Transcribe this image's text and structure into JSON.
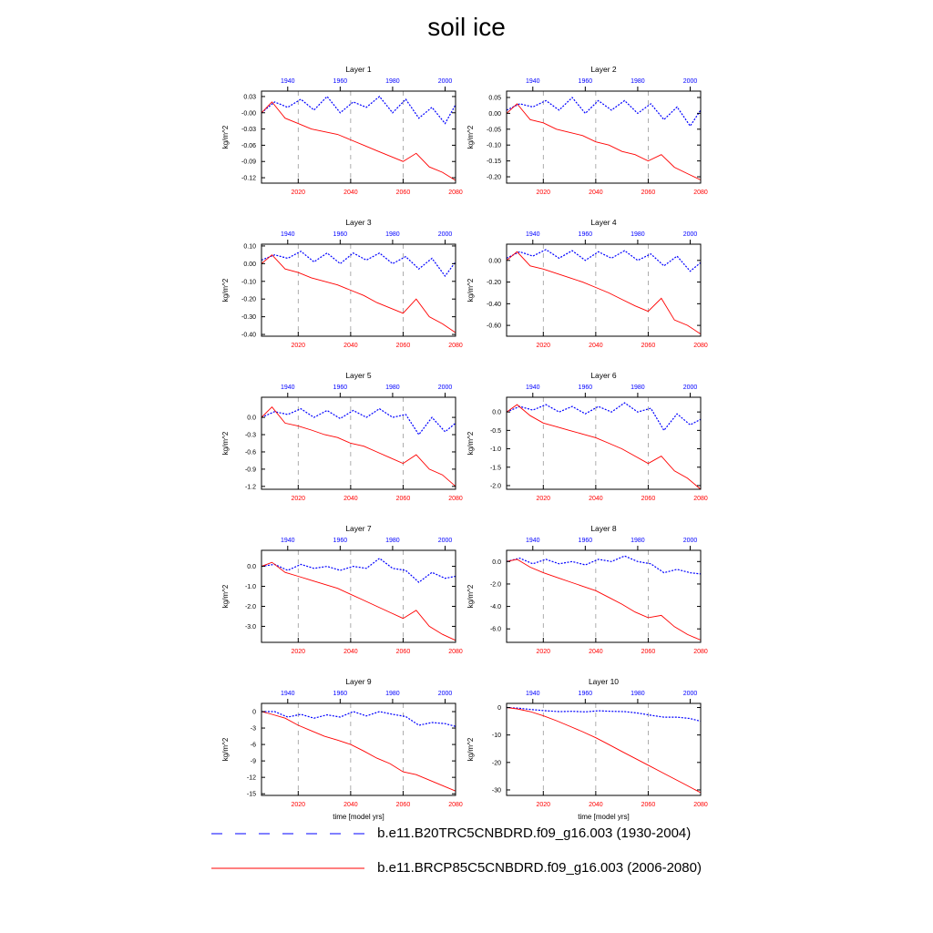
{
  "title": "soil ice",
  "shared_axes": {
    "ylabel": "kg/m^2",
    "xlabel_bottom": "time [model yrs]",
    "bottom_ticks": [
      2020,
      2040,
      2060,
      2080
    ],
    "bottom_range": [
      2006,
      2080
    ],
    "top_ticks": [
      1940,
      1960,
      1980,
      2000
    ],
    "top_range": [
      1930,
      2004
    ],
    "bottom_tick_color": "#ff0000",
    "top_tick_color": "#0000ff",
    "grid": "dashed vertical at bottom ticks"
  },
  "legend": [
    {
      "name": "b.e11.B20TRC5CNBDRD.f09_g16.003 (1930-2004)",
      "color": "#0000ff",
      "style": "dashed"
    },
    {
      "name": "b.e11.BRCP85C5CNBDRD.f09_g16.003 (2006-2080)",
      "color": "#ff0000",
      "style": "solid"
    }
  ],
  "chart_data": [
    {
      "type": "line",
      "title": "Layer 1",
      "ylim": [
        -0.13,
        0.04
      ],
      "yticks": [
        0.03,
        -0.0,
        -0.03,
        -0.06,
        -0.09,
        -0.12
      ],
      "ytick_labels": [
        "0.03",
        "-0.00",
        "-0.03",
        "-0.06",
        "-0.09",
        "-0.12"
      ],
      "series": [
        {
          "name": "b.e11.B20TRC5CNBDRD.f09_g16.003 (1930-2004)",
          "axis": "top",
          "x": [
            1930,
            1935,
            1940,
            1945,
            1950,
            1955,
            1960,
            1965,
            1970,
            1975,
            1980,
            1985,
            1990,
            1995,
            2000,
            2004
          ],
          "values": [
            0.0,
            0.02,
            0.01,
            0.025,
            0.005,
            0.03,
            0.0,
            0.02,
            0.01,
            0.03,
            0.0,
            0.025,
            -0.01,
            0.01,
            -0.02,
            0.015
          ]
        },
        {
          "name": "b.e11.BRCP85C5CNBDRD.f09_g16.003 (2006-2080)",
          "axis": "bottom",
          "x": [
            2006,
            2010,
            2015,
            2020,
            2025,
            2030,
            2035,
            2040,
            2045,
            2050,
            2055,
            2060,
            2065,
            2070,
            2075,
            2080
          ],
          "values": [
            0.0,
            0.02,
            -0.01,
            -0.02,
            -0.03,
            -0.035,
            -0.04,
            -0.05,
            -0.06,
            -0.07,
            -0.08,
            -0.09,
            -0.075,
            -0.1,
            -0.11,
            -0.125
          ]
        }
      ]
    },
    {
      "type": "line",
      "title": "Layer 2",
      "ylim": [
        -0.22,
        0.07
      ],
      "yticks": [
        0.05,
        0.0,
        -0.05,
        -0.1,
        -0.15,
        -0.2
      ],
      "ytick_labels": [
        "0.05",
        "0.00",
        "-0.05",
        "-0.10",
        "-0.15",
        "-0.20"
      ],
      "series": [
        {
          "name": "b.e11.B20TRC5CNBDRD.f09_g16.003 (1930-2004)",
          "axis": "top",
          "x": [
            1930,
            1935,
            1940,
            1945,
            1950,
            1955,
            1960,
            1965,
            1970,
            1975,
            1980,
            1985,
            1990,
            1995,
            2000,
            2004
          ],
          "values": [
            0.01,
            0.03,
            0.02,
            0.04,
            0.01,
            0.05,
            0.0,
            0.04,
            0.01,
            0.04,
            0.0,
            0.03,
            -0.02,
            0.02,
            -0.04,
            0.01
          ]
        },
        {
          "name": "b.e11.BRCP85C5CNBDRD.f09_g16.003 (2006-2080)",
          "axis": "bottom",
          "x": [
            2006,
            2010,
            2015,
            2020,
            2025,
            2030,
            2035,
            2040,
            2045,
            2050,
            2055,
            2060,
            2065,
            2070,
            2075,
            2080
          ],
          "values": [
            0.0,
            0.03,
            -0.02,
            -0.03,
            -0.05,
            -0.06,
            -0.07,
            -0.09,
            -0.1,
            -0.12,
            -0.13,
            -0.15,
            -0.13,
            -0.17,
            -0.19,
            -0.21
          ]
        }
      ]
    },
    {
      "type": "line",
      "title": "Layer 3",
      "ylim": [
        -0.41,
        0.11
      ],
      "yticks": [
        0.1,
        0.0,
        -0.1,
        -0.2,
        -0.3,
        -0.4
      ],
      "ytick_labels": [
        "0.10",
        "0.00",
        "-0.10",
        "-0.20",
        "-0.30",
        "-0.40"
      ],
      "series": [
        {
          "name": "b.e11.B20TRC5CNBDRD.f09_g16.003 (1930-2004)",
          "axis": "top",
          "x": [
            1930,
            1935,
            1940,
            1945,
            1950,
            1955,
            1960,
            1965,
            1970,
            1975,
            1980,
            1985,
            1990,
            1995,
            2000,
            2004
          ],
          "values": [
            0.02,
            0.05,
            0.03,
            0.07,
            0.01,
            0.06,
            0.0,
            0.06,
            0.02,
            0.06,
            0.0,
            0.04,
            -0.03,
            0.03,
            -0.07,
            0.01
          ]
        },
        {
          "name": "b.e11.BRCP85C5CNBDRD.f09_g16.003 (2006-2080)",
          "axis": "bottom",
          "x": [
            2006,
            2010,
            2015,
            2020,
            2025,
            2030,
            2035,
            2040,
            2045,
            2050,
            2055,
            2060,
            2065,
            2070,
            2075,
            2080
          ],
          "values": [
            0.0,
            0.05,
            -0.03,
            -0.05,
            -0.08,
            -0.1,
            -0.12,
            -0.15,
            -0.18,
            -0.22,
            -0.25,
            -0.28,
            -0.2,
            -0.3,
            -0.34,
            -0.39
          ]
        }
      ]
    },
    {
      "type": "line",
      "title": "Layer 4",
      "ylim": [
        -0.7,
        0.15
      ],
      "yticks": [
        0.0,
        -0.2,
        -0.4,
        -0.6
      ],
      "ytick_labels": [
        "0.00",
        "-0.20",
        "-0.40",
        "-0.60"
      ],
      "series": [
        {
          "name": "b.e11.B20TRC5CNBDRD.f09_g16.003 (1930-2004)",
          "axis": "top",
          "x": [
            1930,
            1935,
            1940,
            1945,
            1950,
            1955,
            1960,
            1965,
            1970,
            1975,
            1980,
            1985,
            1990,
            1995,
            2000,
            2004
          ],
          "values": [
            0.02,
            0.08,
            0.04,
            0.1,
            0.02,
            0.09,
            0.0,
            0.08,
            0.02,
            0.09,
            0.0,
            0.06,
            -0.05,
            0.04,
            -0.1,
            -0.02
          ]
        },
        {
          "name": "b.e11.BRCP85C5CNBDRD.f09_g16.003 (2006-2080)",
          "axis": "bottom",
          "x": [
            2006,
            2010,
            2015,
            2020,
            2025,
            2030,
            2035,
            2040,
            2045,
            2050,
            2055,
            2060,
            2065,
            2070,
            2075,
            2080
          ],
          "values": [
            0.0,
            0.08,
            -0.05,
            -0.08,
            -0.12,
            -0.16,
            -0.2,
            -0.25,
            -0.3,
            -0.36,
            -0.42,
            -0.47,
            -0.35,
            -0.55,
            -0.6,
            -0.68
          ]
        }
      ]
    },
    {
      "type": "line",
      "title": "Layer 5",
      "ylim": [
        -1.25,
        0.35
      ],
      "yticks": [
        0.0,
        -0.3,
        -0.6,
        -0.9,
        -1.2
      ],
      "ytick_labels": [
        "0.0",
        "-0.3",
        "-0.6",
        "-0.9",
        "-1.2"
      ],
      "series": [
        {
          "name": "b.e11.B20TRC5CNBDRD.f09_g16.003 (1930-2004)",
          "axis": "top",
          "x": [
            1930,
            1935,
            1940,
            1945,
            1950,
            1955,
            1960,
            1965,
            1970,
            1975,
            1980,
            1985,
            1990,
            1995,
            2000,
            2004
          ],
          "values": [
            0.0,
            0.1,
            0.05,
            0.15,
            0.0,
            0.12,
            -0.02,
            0.12,
            0.0,
            0.15,
            0.0,
            0.05,
            -0.3,
            0.0,
            -0.25,
            -0.1
          ]
        },
        {
          "name": "b.e11.BRCP85C5CNBDRD.f09_g16.003 (2006-2080)",
          "axis": "bottom",
          "x": [
            2006,
            2010,
            2015,
            2020,
            2025,
            2030,
            2035,
            2040,
            2045,
            2050,
            2055,
            2060,
            2065,
            2070,
            2075,
            2080
          ],
          "values": [
            0.0,
            0.18,
            -0.1,
            -0.15,
            -0.22,
            -0.3,
            -0.35,
            -0.45,
            -0.5,
            -0.6,
            -0.7,
            -0.8,
            -0.65,
            -0.9,
            -1.0,
            -1.2
          ]
        }
      ]
    },
    {
      "type": "line",
      "title": "Layer 6",
      "ylim": [
        -2.1,
        0.4
      ],
      "yticks": [
        0.0,
        -0.5,
        -1.0,
        -1.5,
        -2.0
      ],
      "ytick_labels": [
        "0.0",
        "-0.5",
        "-1.0",
        "-1.5",
        "-2.0"
      ],
      "series": [
        {
          "name": "b.e11.B20TRC5CNBDRD.f09_g16.003 (1930-2004)",
          "axis": "top",
          "x": [
            1930,
            1935,
            1940,
            1945,
            1950,
            1955,
            1960,
            1965,
            1970,
            1975,
            1980,
            1985,
            1990,
            1995,
            2000,
            2004
          ],
          "values": [
            0.0,
            0.15,
            0.05,
            0.2,
            0.0,
            0.15,
            -0.05,
            0.15,
            0.0,
            0.25,
            0.0,
            0.1,
            -0.5,
            -0.05,
            -0.35,
            -0.2
          ]
        },
        {
          "name": "b.e11.BRCP85C5CNBDRD.f09_g16.003 (2006-2080)",
          "axis": "bottom",
          "x": [
            2006,
            2010,
            2015,
            2020,
            2025,
            2030,
            2035,
            2040,
            2045,
            2050,
            2055,
            2060,
            2065,
            2070,
            2075,
            2080
          ],
          "values": [
            0.0,
            0.2,
            -0.1,
            -0.3,
            -0.4,
            -0.5,
            -0.6,
            -0.7,
            -0.85,
            -1.0,
            -1.2,
            -1.4,
            -1.2,
            -1.6,
            -1.8,
            -2.1
          ]
        }
      ]
    },
    {
      "type": "line",
      "title": "Layer 7",
      "ylim": [
        -3.8,
        0.8
      ],
      "yticks": [
        0.0,
        -1.0,
        -2.0,
        -3.0
      ],
      "ytick_labels": [
        "0.0",
        "-1.0",
        "-2.0",
        "-3.0"
      ],
      "series": [
        {
          "name": "b.e11.B20TRC5CNBDRD.f09_g16.003 (1930-2004)",
          "axis": "top",
          "x": [
            1930,
            1935,
            1940,
            1945,
            1950,
            1955,
            1960,
            1965,
            1970,
            1975,
            1980,
            1985,
            1990,
            1995,
            2000,
            2004
          ],
          "values": [
            0.0,
            0.1,
            -0.2,
            0.1,
            -0.1,
            0.0,
            -0.2,
            0.0,
            -0.1,
            0.4,
            -0.1,
            -0.2,
            -0.8,
            -0.3,
            -0.6,
            -0.5
          ]
        },
        {
          "name": "b.e11.BRCP85C5CNBDRD.f09_g16.003 (2006-2080)",
          "axis": "bottom",
          "x": [
            2006,
            2010,
            2015,
            2020,
            2025,
            2030,
            2035,
            2040,
            2045,
            2050,
            2055,
            2060,
            2065,
            2070,
            2075,
            2080
          ],
          "values": [
            0.0,
            0.2,
            -0.3,
            -0.5,
            -0.7,
            -0.9,
            -1.1,
            -1.4,
            -1.7,
            -2.0,
            -2.3,
            -2.6,
            -2.2,
            -3.0,
            -3.4,
            -3.7
          ]
        }
      ]
    },
    {
      "type": "line",
      "title": "Layer 8",
      "ylim": [
        -7.2,
        1.0
      ],
      "yticks": [
        0.0,
        -2.0,
        -4.0,
        -6.0
      ],
      "ytick_labels": [
        "0.0",
        "-2.0",
        "-4.0",
        "-6.0"
      ],
      "series": [
        {
          "name": "b.e11.B20TRC5CNBDRD.f09_g16.003 (1930-2004)",
          "axis": "top",
          "x": [
            1930,
            1935,
            1940,
            1945,
            1950,
            1955,
            1960,
            1965,
            1970,
            1975,
            1980,
            1985,
            1990,
            1995,
            2000,
            2004
          ],
          "values": [
            0.0,
            0.3,
            -0.2,
            0.2,
            -0.2,
            0.0,
            -0.3,
            0.2,
            0.0,
            0.5,
            0.0,
            -0.2,
            -1.0,
            -0.7,
            -1.0,
            -1.1
          ]
        },
        {
          "name": "b.e11.BRCP85C5CNBDRD.f09_g16.003 (2006-2080)",
          "axis": "bottom",
          "x": [
            2006,
            2010,
            2015,
            2020,
            2025,
            2030,
            2035,
            2040,
            2045,
            2050,
            2055,
            2060,
            2065,
            2070,
            2075,
            2080
          ],
          "values": [
            0.0,
            0.2,
            -0.5,
            -1.0,
            -1.4,
            -1.8,
            -2.2,
            -2.6,
            -3.2,
            -3.8,
            -4.5,
            -5.0,
            -4.8,
            -5.8,
            -6.5,
            -7.0
          ]
        }
      ]
    },
    {
      "type": "line",
      "title": "Layer 9",
      "ylim": [
        -15.3,
        1.5
      ],
      "yticks": [
        0,
        -3,
        -6,
        -9,
        -12,
        -15
      ],
      "ytick_labels": [
        "0",
        "-3",
        "-6",
        "-9",
        "-12",
        "-15"
      ],
      "series": [
        {
          "name": "b.e11.B20TRC5CNBDRD.f09_g16.003 (1930-2004)",
          "axis": "top",
          "x": [
            1930,
            1935,
            1940,
            1945,
            1950,
            1955,
            1960,
            1965,
            1970,
            1975,
            1980,
            1985,
            1990,
            1995,
            2000,
            2004
          ],
          "values": [
            0.0,
            0.0,
            -1.0,
            -0.5,
            -1.2,
            -0.6,
            -1.0,
            0.0,
            -0.8,
            0.0,
            -0.5,
            -0.9,
            -2.5,
            -2.0,
            -2.2,
            -2.7
          ]
        },
        {
          "name": "b.e11.BRCP85C5CNBDRD.f09_g16.003 (2006-2080)",
          "axis": "bottom",
          "x": [
            2006,
            2010,
            2015,
            2020,
            2025,
            2030,
            2035,
            2040,
            2045,
            2050,
            2055,
            2060,
            2065,
            2070,
            2075,
            2080
          ],
          "values": [
            0.0,
            -0.5,
            -1.2,
            -2.5,
            -3.5,
            -4.5,
            -5.2,
            -6.0,
            -7.2,
            -8.5,
            -9.5,
            -11.0,
            -11.5,
            -12.5,
            -13.5,
            -14.5
          ]
        }
      ]
    },
    {
      "type": "line",
      "title": "Layer 10",
      "ylim": [
        -32,
        1.5
      ],
      "yticks": [
        0,
        -10,
        -20,
        -30
      ],
      "ytick_labels": [
        "0",
        "-10",
        "-20",
        "-30"
      ],
      "series": [
        {
          "name": "b.e11.B20TRC5CNBDRD.f09_g16.003 (1930-2004)",
          "axis": "top",
          "x": [
            1930,
            1935,
            1940,
            1945,
            1950,
            1955,
            1960,
            1965,
            1970,
            1975,
            1980,
            1985,
            1990,
            1995,
            2000,
            2004
          ],
          "values": [
            0.0,
            -0.3,
            -0.8,
            -1.2,
            -1.5,
            -1.4,
            -1.6,
            -1.2,
            -1.4,
            -1.5,
            -2.0,
            -2.8,
            -3.5,
            -3.5,
            -4.0,
            -5.0
          ]
        },
        {
          "name": "b.e11.BRCP85C5CNBDRD.f09_g16.003 (2006-2080)",
          "axis": "bottom",
          "x": [
            2006,
            2010,
            2015,
            2020,
            2025,
            2030,
            2035,
            2040,
            2045,
            2050,
            2055,
            2060,
            2065,
            2070,
            2075,
            2080
          ],
          "values": [
            0.0,
            -0.5,
            -1.5,
            -3.0,
            -4.8,
            -6.8,
            -8.8,
            -11.0,
            -13.5,
            -16.0,
            -18.5,
            -21.0,
            -23.5,
            -26.0,
            -28.5,
            -31.0
          ]
        }
      ]
    }
  ]
}
